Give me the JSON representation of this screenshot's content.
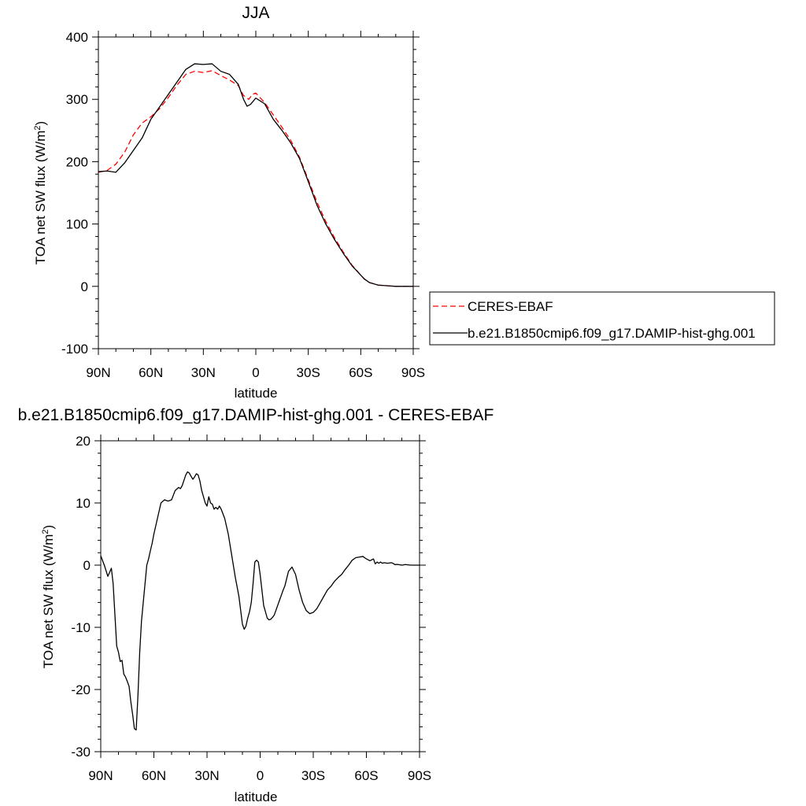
{
  "chart_data": [
    {
      "type": "line",
      "title": "JJA",
      "xlabel": "latitude",
      "ylabel": "TOA net SW flux (W/m",
      "ylabel_sup": "2",
      "ylabel_end": ")",
      "xlim": [
        90,
        -90
      ],
      "ylim": [
        -100,
        400
      ],
      "xticks": [
        90,
        60,
        30,
        0,
        -30,
        -60,
        -90
      ],
      "xtick_labels": [
        "90N",
        "60N",
        "30N",
        "0",
        "30S",
        "60S",
        "90S"
      ],
      "yticks": [
        -100,
        0,
        100,
        200,
        300,
        400
      ],
      "ytick_labels": [
        "-100",
        "0",
        "100",
        "200",
        "300",
        "400"
      ],
      "legend_position": "outside-right",
      "series": [
        {
          "name": "CERES-EBAF",
          "color": "#ff0000",
          "dash": "dashed",
          "x": [
            90,
            85,
            80,
            75,
            70,
            65,
            60,
            55,
            50,
            45,
            40,
            35,
            30,
            25,
            20,
            15,
            10,
            7,
            4,
            2,
            0,
            -5,
            -10,
            -15,
            -20,
            -25,
            -30,
            -35,
            -40,
            -45,
            -50,
            -55,
            -60,
            -62,
            -65,
            -70,
            -75,
            -80,
            -85,
            -90
          ],
          "y": [
            183,
            186,
            196,
            215,
            243,
            262,
            272,
            285,
            303,
            323,
            340,
            345,
            343,
            346,
            338,
            331,
            322,
            306,
            300,
            308,
            310,
            295,
            275,
            255,
            234,
            207,
            171,
            135,
            104,
            78,
            55,
            34,
            18,
            12,
            6,
            2,
            1,
            0,
            0,
            0
          ]
        },
        {
          "name": "b.e21.B1850cmip6.f09_g17.DAMIP-hist-ghg.001",
          "color": "#000000",
          "dash": "solid",
          "x": [
            90,
            85,
            80,
            75,
            70,
            65,
            60,
            55,
            50,
            45,
            40,
            35,
            30,
            25,
            20,
            15,
            10,
            7,
            5,
            3,
            0,
            -5,
            -10,
            -15,
            -20,
            -25,
            -30,
            -35,
            -40,
            -45,
            -50,
            -55,
            -60,
            -62,
            -65,
            -70,
            -75,
            -80,
            -85,
            -90
          ],
          "y": [
            184,
            185,
            183,
            198,
            218,
            238,
            268,
            288,
            308,
            328,
            348,
            357,
            356,
            357,
            345,
            340,
            324,
            300,
            289,
            292,
            302,
            293,
            268,
            250,
            230,
            205,
            168,
            130,
            100,
            75,
            53,
            33,
            18,
            12,
            6,
            2,
            1,
            0,
            0,
            0
          ]
        }
      ]
    },
    {
      "type": "line",
      "title": "b.e21.B1850cmip6.f09_g17.DAMIP-hist-ghg.001 - CERES-EBAF",
      "xlabel": "latitude",
      "ylabel": "TOA net SW flux (W/m",
      "ylabel_sup": "2",
      "ylabel_end": ")",
      "xlim": [
        90,
        -90
      ],
      "ylim": [
        -30,
        20
      ],
      "xticks": [
        90,
        60,
        30,
        0,
        -30,
        -60,
        -90
      ],
      "xtick_labels": [
        "90N",
        "60N",
        "30N",
        "0",
        "30S",
        "60S",
        "90S"
      ],
      "yticks": [
        -30,
        -20,
        -10,
        0,
        10,
        20
      ],
      "ytick_labels": [
        "-30",
        "-20",
        "-10",
        "0",
        "10",
        "20"
      ],
      "series": [
        {
          "color": "#000000",
          "dash": "solid",
          "x": [
            90,
            88,
            86,
            84,
            83,
            82,
            81,
            80,
            79,
            78,
            77,
            76,
            75,
            74,
            73,
            72,
            71,
            70,
            69,
            68,
            67,
            66,
            65,
            64,
            63,
            62,
            61,
            60,
            58,
            56,
            54,
            52,
            50,
            48,
            46,
            45,
            44,
            42,
            41,
            40,
            39,
            38,
            37,
            36,
            35,
            34,
            33,
            32,
            31,
            30,
            29,
            28,
            27,
            26,
            25,
            24,
            23,
            22,
            20,
            18,
            16,
            14,
            12,
            10,
            9,
            8,
            7,
            6,
            5,
            4,
            3,
            2,
            1,
            0,
            -1,
            -2,
            -3,
            -4,
            -5,
            -6,
            -7,
            -8,
            -9,
            -10,
            -11,
            -12,
            -13,
            -14,
            -16,
            -18,
            -20,
            -22,
            -24,
            -26,
            -28,
            -30,
            -32,
            -34,
            -36,
            -38,
            -40,
            -42,
            -44,
            -46,
            -48,
            -50,
            -52,
            -54,
            -56,
            -58,
            -60,
            -62,
            -64,
            -65,
            -66,
            -67,
            -68,
            -69,
            -70,
            -72,
            -74,
            -75,
            -76,
            -78,
            -80,
            -82,
            -85,
            -88,
            -90
          ],
          "y": [
            1.5,
            0,
            -1.8,
            -0.5,
            -3,
            -8,
            -13,
            -14,
            -15.5,
            -15.3,
            -17.5,
            -18,
            -18.7,
            -19.5,
            -22,
            -24,
            -26.3,
            -26.5,
            -21,
            -14,
            -9,
            -6,
            -3,
            0,
            1,
            2.3,
            3.5,
            5,
            7.5,
            10,
            10.5,
            10.3,
            10.5,
            12,
            12.5,
            12.3,
            12.8,
            14.5,
            15,
            14.8,
            14.3,
            13.8,
            14.2,
            14.7,
            14.5,
            13.5,
            12,
            11,
            10,
            9.5,
            11,
            10,
            9.8,
            9,
            9.3,
            9,
            9.5,
            9,
            7.5,
            5,
            1.5,
            -2,
            -5,
            -9.5,
            -10.3,
            -9.8,
            -8.5,
            -7.5,
            -6,
            -3,
            0.5,
            0.8,
            0.5,
            -1.5,
            -4,
            -6.5,
            -7.5,
            -8.5,
            -8.8,
            -8.7,
            -8.4,
            -8,
            -7.2,
            -6.4,
            -5.6,
            -4.8,
            -4,
            -3.3,
            -1,
            -0.3,
            -1.5,
            -4,
            -6,
            -7.3,
            -7.8,
            -7.6,
            -7,
            -6,
            -5,
            -4,
            -3.4,
            -2.6,
            -2,
            -1.5,
            -0.7,
            0,
            0.8,
            1.2,
            1.3,
            1.4,
            1,
            0.7,
            1,
            0.2,
            0.5,
            0.3,
            0.5,
            0.3,
            0.4,
            0.3,
            0.4,
            0.3,
            0.1,
            0.1,
            0,
            0.1,
            0,
            0,
            0
          ]
        }
      ]
    }
  ]
}
